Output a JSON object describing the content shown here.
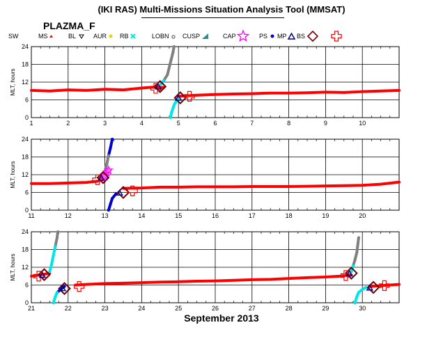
{
  "title": "(IKI RAS) Multi-Missions Situation Analysis Tool (MMSAT)",
  "mission": "PLAZMA_F",
  "xlabel": "September 2013",
  "legend": [
    {
      "label": "SW",
      "color": "#000000",
      "icon": "none"
    },
    {
      "label": "MS",
      "color": "#ff0000",
      "icon": "triangle-up-small"
    },
    {
      "label": "BL",
      "color": "#000000",
      "icon": "triangle-down-outline"
    },
    {
      "label": "AUR",
      "color": "#f0d000",
      "icon": "dot"
    },
    {
      "label": "RB",
      "color": "#00e5e5",
      "icon": "x-mark"
    },
    {
      "label": "LOBN",
      "color": "#808080",
      "icon": "small-o"
    },
    {
      "label": "CUSP",
      "color": "#2f8f8f",
      "icon": "triangle-corner"
    },
    {
      "label": "CAP",
      "color": "#ff00ff",
      "icon": "star-outline"
    },
    {
      "label": "PS",
      "color": "#0000cc",
      "icon": "dot"
    },
    {
      "label": "MP",
      "color": "#000080",
      "icon": "triangle-outline"
    },
    {
      "label": "BS",
      "color": "#7a0000",
      "icon": "diamond-outline"
    },
    {
      "label": "",
      "color": "#ff0000",
      "icon": "cross-outline"
    }
  ],
  "chart_data": [
    {
      "type": "scatter",
      "ylabel": "MLT, hours",
      "xlim": [
        1,
        11
      ],
      "ylim": [
        0,
        24
      ],
      "xticks": [
        "1",
        "2",
        "3",
        "4",
        "5",
        "6",
        "7",
        "8",
        "9",
        "10"
      ],
      "yticks": [
        "0",
        "6",
        "12",
        "18",
        "24"
      ],
      "grid": true,
      "sw_trace": [
        [
          1,
          9.2
        ],
        [
          1.5,
          9.0
        ],
        [
          2,
          9.4
        ],
        [
          2.5,
          9.2
        ],
        [
          3,
          9.6
        ],
        [
          3.5,
          9.4
        ],
        [
          4,
          10.0
        ],
        [
          4.3,
          10.3
        ],
        [
          4.6,
          10.2
        ],
        [
          5,
          7.2
        ],
        [
          5.5,
          7.6
        ],
        [
          6,
          7.8
        ],
        [
          6.5,
          8.0
        ],
        [
          7,
          8.1
        ],
        [
          7.5,
          8.3
        ],
        [
          8,
          8.3
        ],
        [
          8.5,
          8.4
        ],
        [
          9,
          8.6
        ],
        [
          9.5,
          8.5
        ],
        [
          10,
          8.8
        ],
        [
          10.5,
          9.0
        ],
        [
          11,
          9.2
        ]
      ],
      "magnetosphere_arcs": [
        {
          "points": [
            [
              4.5,
              11.0
            ],
            [
              4.6,
              12.5
            ],
            [
              4.7,
              14.5
            ],
            [
              4.75,
              17.0
            ],
            [
              4.8,
              19.5
            ],
            [
              4.85,
              22.0
            ],
            [
              4.88,
              24.0
            ]
          ],
          "colors": [
            "#00e5e5",
            "#00e5e5",
            "#808080",
            "#808080",
            "#808080",
            "#808080",
            "#808080"
          ]
        },
        {
          "points": [
            [
              4.78,
              0.0
            ],
            [
              4.82,
              2.0
            ],
            [
              4.86,
              3.5
            ],
            [
              4.9,
              4.8
            ],
            [
              5.0,
              6.2
            ]
          ],
          "colors": [
            "#00e5e5",
            "#00e5e5",
            "#00e5e5",
            "#00e5e5",
            "#00e5e5"
          ]
        }
      ],
      "boundary_crossings": [
        {
          "type": "bs",
          "x": 4.5,
          "y": 10.5
        },
        {
          "type": "bs-cross",
          "x": 4.38,
          "y": 9.9
        },
        {
          "type": "mp",
          "x": 4.45,
          "y": 10.4
        },
        {
          "type": "bs",
          "x": 5.05,
          "y": 6.7
        },
        {
          "type": "bs-cross",
          "x": 5.3,
          "y": 7.2
        },
        {
          "type": "mp",
          "x": 5.0,
          "y": 6.6
        }
      ]
    },
    {
      "type": "scatter",
      "ylabel": "MLT, hours",
      "xlim": [
        11,
        21
      ],
      "ylim": [
        0,
        24
      ],
      "xticks": [
        "11",
        "12",
        "13",
        "14",
        "15",
        "16",
        "17",
        "18",
        "19",
        "20"
      ],
      "yticks": [
        "0",
        "6",
        "12",
        "18",
        "24"
      ],
      "grid": true,
      "sw_trace": [
        [
          11,
          9.0
        ],
        [
          11.5,
          9.0
        ],
        [
          12,
          9.2
        ],
        [
          12.5,
          9.4
        ],
        [
          12.8,
          9.8
        ],
        [
          13.5,
          7.4
        ],
        [
          14,
          7.5
        ],
        [
          14.5,
          7.8
        ],
        [
          15,
          7.8
        ],
        [
          15.5,
          7.9
        ],
        [
          16,
          7.9
        ],
        [
          16.5,
          7.9
        ],
        [
          17,
          8.0
        ],
        [
          17.5,
          8.0
        ],
        [
          18,
          8.0
        ],
        [
          18.5,
          8.1
        ],
        [
          19,
          8.2
        ],
        [
          19.5,
          8.3
        ],
        [
          20,
          8.4
        ],
        [
          20.5,
          8.8
        ],
        [
          21,
          9.5
        ]
      ],
      "magnetosphere_arcs": [
        {
          "points": [
            [
              12.9,
              10.5
            ],
            [
              13.0,
              13.0
            ],
            [
              13.05,
              15.5
            ],
            [
              13.1,
              18.5
            ],
            [
              13.15,
              21.0
            ],
            [
              13.2,
              24.0
            ]
          ],
          "colors": [
            "#808080",
            "#808080",
            "#808080",
            "#808080",
            "#0000cc",
            "#0000cc"
          ]
        },
        {
          "points": [
            [
              13.1,
              0.0
            ],
            [
              13.15,
              2.0
            ],
            [
              13.2,
              4.0
            ],
            [
              13.3,
              5.5
            ]
          ],
          "colors": [
            "#0000cc",
            "#0000cc",
            "#0000cc",
            "#0000cc"
          ]
        }
      ],
      "cap_cluster": [
        [
          12.95,
          11.0
        ],
        [
          13.0,
          12.0
        ],
        [
          13.05,
          12.8
        ],
        [
          13.1,
          13.5
        ],
        [
          13.0,
          11.5
        ]
      ],
      "boundary_crossings": [
        {
          "type": "bs",
          "x": 12.95,
          "y": 11.0
        },
        {
          "type": "bs-cross",
          "x": 12.8,
          "y": 10.3
        },
        {
          "type": "mp",
          "x": 12.9,
          "y": 10.8
        },
        {
          "type": "bs",
          "x": 13.5,
          "y": 6.0
        },
        {
          "type": "bs-cross",
          "x": 13.75,
          "y": 6.5
        },
        {
          "type": "mp",
          "x": 13.4,
          "y": 5.8
        }
      ]
    },
    {
      "type": "scatter",
      "ylabel": "MLT, hours",
      "xlim": [
        21,
        31
      ],
      "ylim": [
        0,
        24
      ],
      "xticks": [
        "21",
        "22",
        "23",
        "24",
        "25",
        "26",
        "27",
        "28",
        "29",
        "30"
      ],
      "yticks": [
        "0",
        "6",
        "12",
        "18",
        "24"
      ],
      "grid": true,
      "sw_trace": [
        [
          21,
          9.0
        ],
        [
          21.3,
          9.5
        ],
        [
          21.5,
          10.0
        ],
        [
          22.2,
          6.0
        ],
        [
          22.5,
          6.2
        ],
        [
          23,
          6.5
        ],
        [
          23.5,
          6.6
        ],
        [
          24,
          6.8
        ],
        [
          24.5,
          7.0
        ],
        [
          25,
          7.1
        ],
        [
          25.5,
          7.3
        ],
        [
          26,
          7.4
        ],
        [
          26.5,
          7.6
        ],
        [
          27,
          7.8
        ],
        [
          27.5,
          7.9
        ],
        [
          28,
          8.2
        ],
        [
          28.5,
          8.5
        ],
        [
          29,
          8.7
        ],
        [
          29.4,
          9.0
        ],
        [
          29.7,
          9.4
        ],
        [
          30.2,
          5.5
        ],
        [
          30.5,
          5.8
        ],
        [
          31,
          6.2
        ]
      ],
      "magnetosphere_arcs": [
        {
          "points": [
            [
              21.5,
              10.5
            ],
            [
              21.55,
              13.0
            ],
            [
              21.6,
              16.0
            ],
            [
              21.65,
              19.0
            ],
            [
              21.7,
              22.0
            ],
            [
              21.72,
              24.0
            ]
          ],
          "colors": [
            "#00e5e5",
            "#00e5e5",
            "#00e5e5",
            "#00e5e5",
            "#808080",
            "#808080"
          ]
        },
        {
          "points": [
            [
              21.6,
              0.0
            ],
            [
              21.65,
              2.0
            ],
            [
              21.7,
              3.5
            ],
            [
              21.8,
              4.5
            ],
            [
              21.9,
              5.5
            ]
          ],
          "colors": [
            "#00e5e5",
            "#00e5e5",
            "#00e5e5",
            "#0000cc",
            "#0000cc"
          ]
        },
        {
          "points": [
            [
              29.7,
              10.5
            ],
            [
              29.75,
              12.5
            ],
            [
              29.8,
              14.5
            ],
            [
              29.85,
              17.0
            ],
            [
              29.88,
              20.0
            ],
            [
              29.9,
              22.0
            ]
          ],
          "colors": [
            "#00e5e5",
            "#00e5e5",
            "#808080",
            "#808080",
            "#808080",
            "#808080"
          ]
        },
        {
          "points": [
            [
              29.8,
              0.0
            ],
            [
              29.85,
              2.0
            ],
            [
              29.9,
              3.5
            ],
            [
              30.0,
              4.5
            ],
            [
              30.1,
              5.2
            ]
          ],
          "colors": [
            "#00e5e5",
            "#00e5e5",
            "#00e5e5",
            "#00e5e5",
            "#00e5e5"
          ]
        }
      ],
      "boundary_crossings": [
        {
          "type": "bs",
          "x": 21.35,
          "y": 9.5
        },
        {
          "type": "bs-cross",
          "x": 21.2,
          "y": 9.0
        },
        {
          "type": "mp",
          "x": 21.3,
          "y": 9.3
        },
        {
          "type": "bs",
          "x": 21.9,
          "y": 4.8
        },
        {
          "type": "bs-cross",
          "x": 22.3,
          "y": 5.5
        },
        {
          "type": "mp",
          "x": 21.85,
          "y": 4.8
        },
        {
          "type": "bs",
          "x": 29.7,
          "y": 10.0
        },
        {
          "type": "bs-cross",
          "x": 29.55,
          "y": 9.2
        },
        {
          "type": "mp",
          "x": 29.65,
          "y": 9.8
        },
        {
          "type": "bs",
          "x": 30.3,
          "y": 5.2
        },
        {
          "type": "bs-cross",
          "x": 30.6,
          "y": 5.8
        },
        {
          "type": "mp",
          "x": 30.2,
          "y": 5.0
        }
      ]
    }
  ]
}
